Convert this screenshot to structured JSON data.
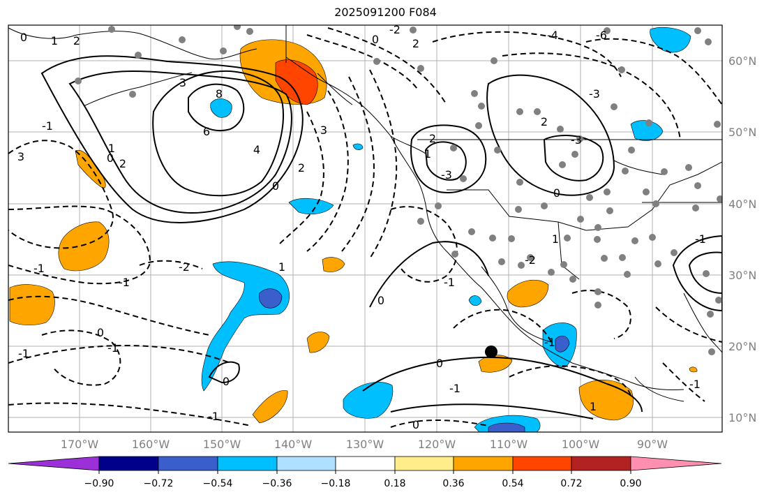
{
  "title": "2025091200 F084",
  "longitude_labels": [
    "170°W",
    "160°W",
    "150°W",
    "140°W",
    "130°W",
    "120°W",
    "110°W",
    "100°W",
    "90°W"
  ],
  "latitude_labels": [
    "60°N",
    "50°N",
    "40°N",
    "30°N",
    "20°N",
    "10°N"
  ],
  "colorbar": {
    "ticks": [
      "−0.90",
      "−0.72",
      "−0.54",
      "−0.36",
      "−0.18",
      "0.18",
      "0.36",
      "0.54",
      "0.72",
      "0.90"
    ],
    "colors": [
      "#9b30d9",
      "#00008b",
      "#3a5fcd",
      "#00bfff",
      "#b0e0ff",
      "#ffffff",
      "#ffec8b",
      "#ffa500",
      "#ff4500",
      "#b22222",
      "#ff8fb0"
    ]
  },
  "contour_labels": [
    {
      "text": "0"
    },
    {
      "text": "1"
    },
    {
      "text": "2"
    },
    {
      "text": "3"
    },
    {
      "text": "8"
    },
    {
      "text": "6"
    },
    {
      "text": "4"
    },
    {
      "text": "2"
    },
    {
      "text": "1"
    },
    {
      "text": "0"
    },
    {
      "text": "3"
    },
    {
      "text": "2"
    },
    {
      "text": "0"
    },
    {
      "text": "2"
    },
    {
      "text": "1"
    },
    {
      "text": "-3"
    },
    {
      "text": "-3"
    },
    {
      "text": "-2"
    },
    {
      "text": "-1"
    },
    {
      "text": "1"
    },
    {
      "text": "-1"
    },
    {
      "text": "-2"
    },
    {
      "text": "-1"
    },
    {
      "text": "0"
    },
    {
      "text": "-1"
    },
    {
      "text": "-1"
    },
    {
      "text": "0"
    },
    {
      "text": "0"
    },
    {
      "text": "-1"
    },
    {
      "text": "-1"
    },
    {
      "text": "0"
    },
    {
      "text": "1"
    },
    {
      "text": "0"
    },
    {
      "text": "-1"
    },
    {
      "text": "1"
    },
    {
      "text": "-1"
    },
    {
      "text": "2"
    },
    {
      "text": "0"
    },
    {
      "text": "-2"
    },
    {
      "text": "-6"
    },
    {
      "text": "-3"
    },
    {
      "text": "-4"
    },
    {
      "text": "3"
    },
    {
      "text": "0"
    },
    {
      "text": "-1"
    },
    {
      "text": "-1"
    },
    {
      "text": "2"
    }
  ]
}
